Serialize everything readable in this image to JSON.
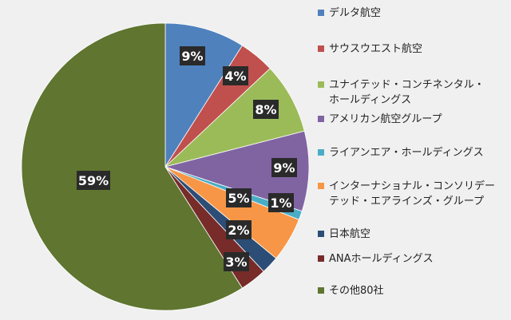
{
  "chart_data": {
    "type": "pie",
    "title": "",
    "start_angle_deg": 0,
    "direction": "clockwise",
    "legend_position": "right",
    "data_labels": true,
    "slices": [
      {
        "name": "デルタ航空",
        "name_lines": [
          "デルタ航空"
        ],
        "value": 9,
        "label": "9%",
        "color": "#4f81bd"
      },
      {
        "name": "サウスウエスト航空",
        "name_lines": [
          "サウスウエスト航空"
        ],
        "value": 4,
        "label": "4%",
        "color": "#c0504d"
      },
      {
        "name": "ユナイテッド・コンチネンタル・ホールディングス",
        "name_lines": [
          "ユナイテッド・コンチネンタル・",
          "ホールディングス"
        ],
        "value": 8,
        "label": "8%",
        "color": "#9bbb59"
      },
      {
        "name": "アメリカン航空グループ",
        "name_lines": [
          "アメリカン航空グループ"
        ],
        "value": 9,
        "label": "9%",
        "color": "#8064a2"
      },
      {
        "name": "ライアンエア・ホールディングス",
        "name_lines": [
          "ライアンエア・ホールディングス"
        ],
        "value": 1,
        "label": "1%",
        "color": "#4bacc6"
      },
      {
        "name": "インターナショナル・コンソリデーテッド・エアラインズ・グループ",
        "name_lines": [
          "インターナショナル・コンソリデー",
          "テッド・エアラインズ・グループ"
        ],
        "value": 5,
        "label": "5%",
        "color": "#f79646"
      },
      {
        "name": "日本航空",
        "name_lines": [
          "日本航空"
        ],
        "value": 2,
        "label": "2%",
        "color": "#2c4d75"
      },
      {
        "name": "ANAホールディングス",
        "name_lines": [
          "ANAホールディングス"
        ],
        "value": 3,
        "label": "3%",
        "color": "#772c2a"
      },
      {
        "name": "その他80社",
        "name_lines": [
          "その他80社"
        ],
        "value": 59,
        "label": "59%",
        "color": "#5f7530"
      }
    ]
  }
}
